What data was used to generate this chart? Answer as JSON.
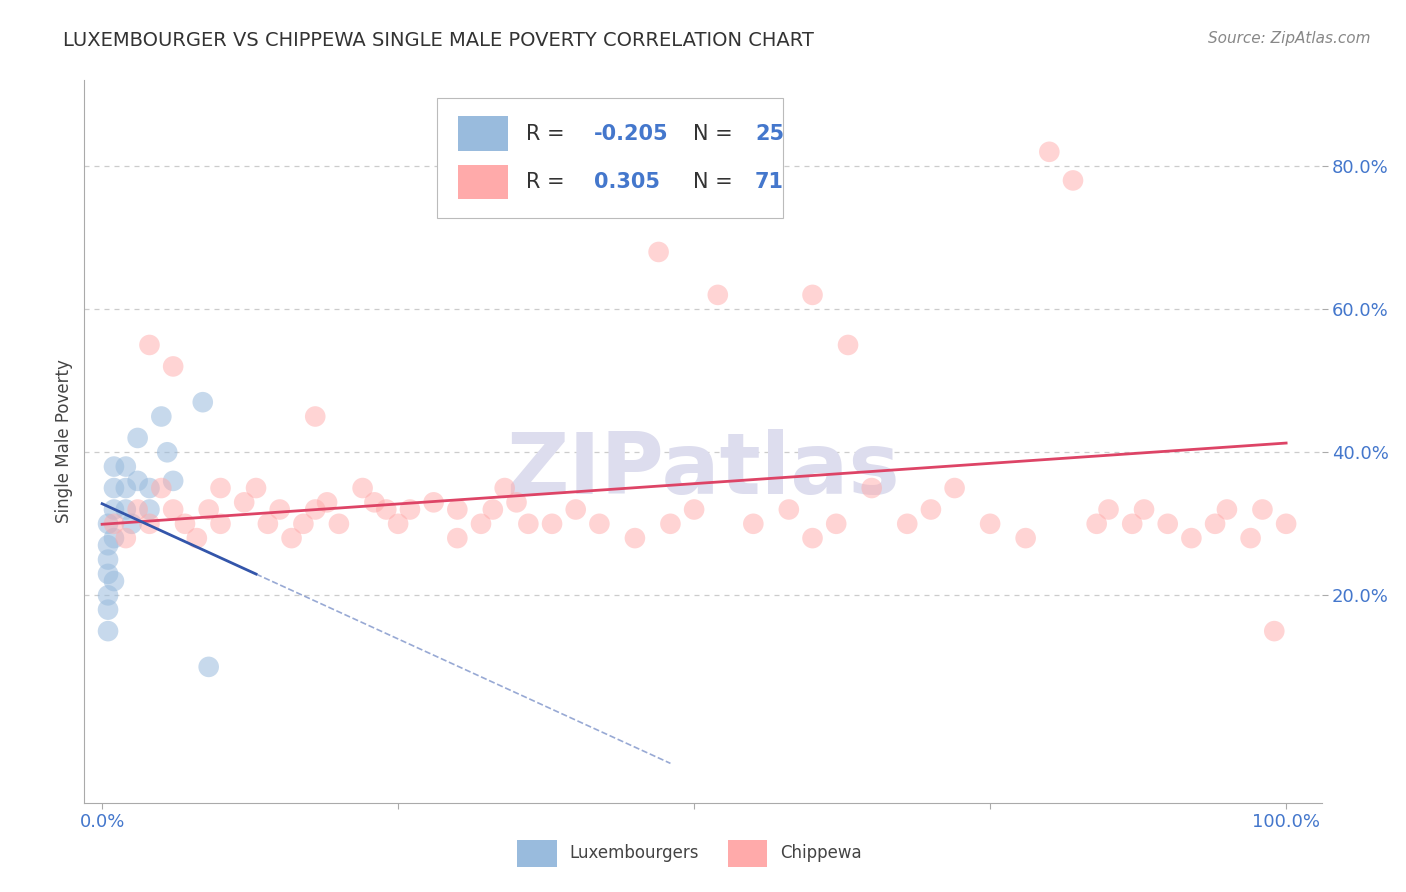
{
  "title": "LUXEMBOURGER VS CHIPPEWA SINGLE MALE POVERTY CORRELATION CHART",
  "source": "Source: ZipAtlas.com",
  "ylabel": "Single Male Poverty",
  "ytick_labels": [
    "20.0%",
    "40.0%",
    "60.0%",
    "80.0%"
  ],
  "ytick_vals": [
    0.2,
    0.4,
    0.6,
    0.8
  ],
  "R_lux": -0.205,
  "R_chip": 0.305,
  "N_lux": 25,
  "N_chip": 71,
  "watermark": "ZIPatlas",
  "lux_color": "#99BBDD",
  "chip_color": "#FFAAAA",
  "lux_line_color": "#3355AA",
  "chip_line_color": "#DD4466",
  "lux_alpha": 0.55,
  "chip_alpha": 0.5,
  "marker_size": 220,
  "title_fontsize": 14,
  "source_fontsize": 11,
  "tick_fontsize": 13,
  "legend_fontsize": 15,
  "ylabel_fontsize": 12,
  "grid_color": "#cccccc",
  "spine_color": "#aaaaaa",
  "xtick_color": "#4477CC",
  "ytick_color": "#4477CC",
  "legend_text_color": "#333333",
  "legend_num_color": "#4477CC",
  "watermark_color": "#ddddee",
  "bottom_legend_label_lux": "Luxembourgers",
  "bottom_legend_label_chip": "Chippewa"
}
